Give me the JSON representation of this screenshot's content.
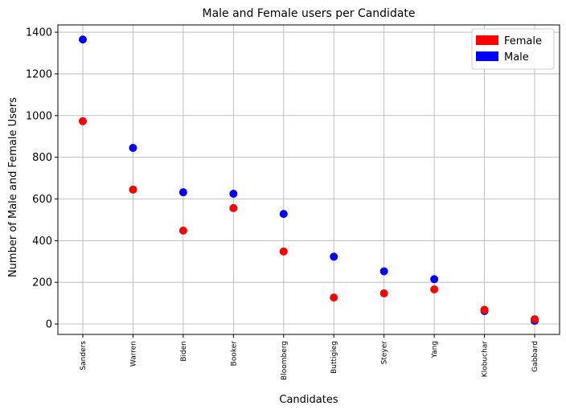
{
  "chart_data": {
    "type": "scatter",
    "title": "Male and Female users per Candidate",
    "xlabel": "Candidates",
    "ylabel": "Number of Male and Female Users",
    "categories": [
      "Sanders",
      "Warren",
      "Biden",
      "Booker",
      "Bloomberg",
      "Buttigieg",
      "Steyer",
      "Yang",
      "Klobuchar",
      "Gabbard"
    ],
    "series": [
      {
        "name": "Male",
        "color": "#0000ff",
        "values": [
          1365,
          845,
          632,
          625,
          528,
          323,
          253,
          215,
          62,
          15
        ]
      },
      {
        "name": "Female",
        "color": "#ff0000",
        "values": [
          973,
          645,
          448,
          556,
          348,
          127,
          147,
          166,
          68,
          23
        ]
      }
    ],
    "ylim": [
      -50,
      1435
    ],
    "yticks": [
      0,
      200,
      400,
      600,
      800,
      1000,
      1200,
      1400
    ],
    "grid": true,
    "legend": {
      "position": "top-right",
      "entries": [
        {
          "label": "Female",
          "color": "#ff0000"
        },
        {
          "label": "Male",
          "color": "#0000ff"
        }
      ]
    }
  }
}
